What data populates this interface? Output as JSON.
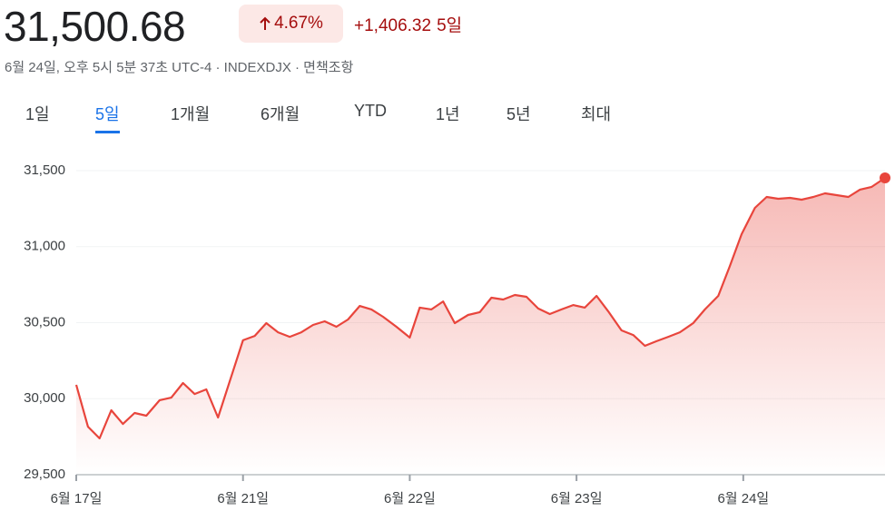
{
  "header": {
    "price": "31,500.68",
    "change_pct": "4.67%",
    "change": "+1,406.32",
    "period": "5일",
    "subtitle": "6월 24일, 오후 5시 5분 37초 UTC-4 · INDEXDJX · 면책조항"
  },
  "tabs": {
    "items": [
      "1일",
      "5일",
      "1개월",
      "6개월",
      "YTD",
      "1년",
      "5년",
      "최대"
    ],
    "selected": 1
  },
  "chart_data": {
    "type": "line",
    "color": "#e8453c",
    "grid": true,
    "x": [
      0,
      0.07,
      0.14,
      0.21,
      0.28,
      0.35,
      0.42,
      0.5,
      0.57,
      0.64,
      0.71,
      0.78,
      0.85,
      1.0,
      1.07,
      1.14,
      1.21,
      1.28,
      1.35,
      1.42,
      1.49,
      1.56,
      1.63,
      1.7,
      1.77,
      1.84,
      1.92,
      2.0,
      2.06,
      2.13,
      2.2,
      2.27,
      2.35,
      2.42,
      2.49,
      2.56,
      2.63,
      2.7,
      2.77,
      2.84,
      2.91,
      2.98,
      3.05,
      3.12,
      3.19,
      3.27,
      3.34,
      3.41,
      3.48,
      3.55,
      3.62,
      3.7,
      3.77,
      3.85,
      3.92,
      3.99,
      4.07,
      4.14,
      4.21,
      4.28,
      4.35,
      4.42,
      4.49,
      4.56,
      4.63,
      4.7,
      4.77,
      4.85
    ],
    "values": [
      30091,
      29816,
      29739,
      29924,
      29834,
      29906,
      29888,
      29990,
      30007,
      30103,
      30031,
      30061,
      29876,
      30384,
      30413,
      30497,
      30437,
      30407,
      30437,
      30485,
      30509,
      30473,
      30521,
      30610,
      30587,
      30539,
      30473,
      30402,
      30599,
      30587,
      30640,
      30497,
      30551,
      30569,
      30664,
      30652,
      30682,
      30670,
      30593,
      30557,
      30587,
      30616,
      30599,
      30676,
      30575,
      30449,
      30419,
      30348,
      30378,
      30407,
      30437,
      30497,
      30587,
      30676,
      30873,
      31082,
      31255,
      31327,
      31315,
      31321,
      31309,
      31327,
      31351,
      31339,
      31327,
      31375,
      31393,
      31452
    ],
    "xlim": [
      0,
      4.85
    ],
    "xticks": [
      {
        "value": 0,
        "label": "6월 17일"
      },
      {
        "value": 1,
        "label": "6월 21일"
      },
      {
        "value": 2,
        "label": "6월 22일"
      },
      {
        "value": 3,
        "label": "6월 23일"
      },
      {
        "value": 4,
        "label": "6월 24일"
      }
    ],
    "ylim": [
      29500,
      31500
    ],
    "yticks": [
      {
        "value": 29500,
        "label": "29,500"
      },
      {
        "value": 30000,
        "label": "30,000"
      },
      {
        "value": 30500,
        "label": "30,500"
      },
      {
        "value": 31000,
        "label": "31,000"
      },
      {
        "value": 31500,
        "label": "31,500"
      }
    ]
  }
}
